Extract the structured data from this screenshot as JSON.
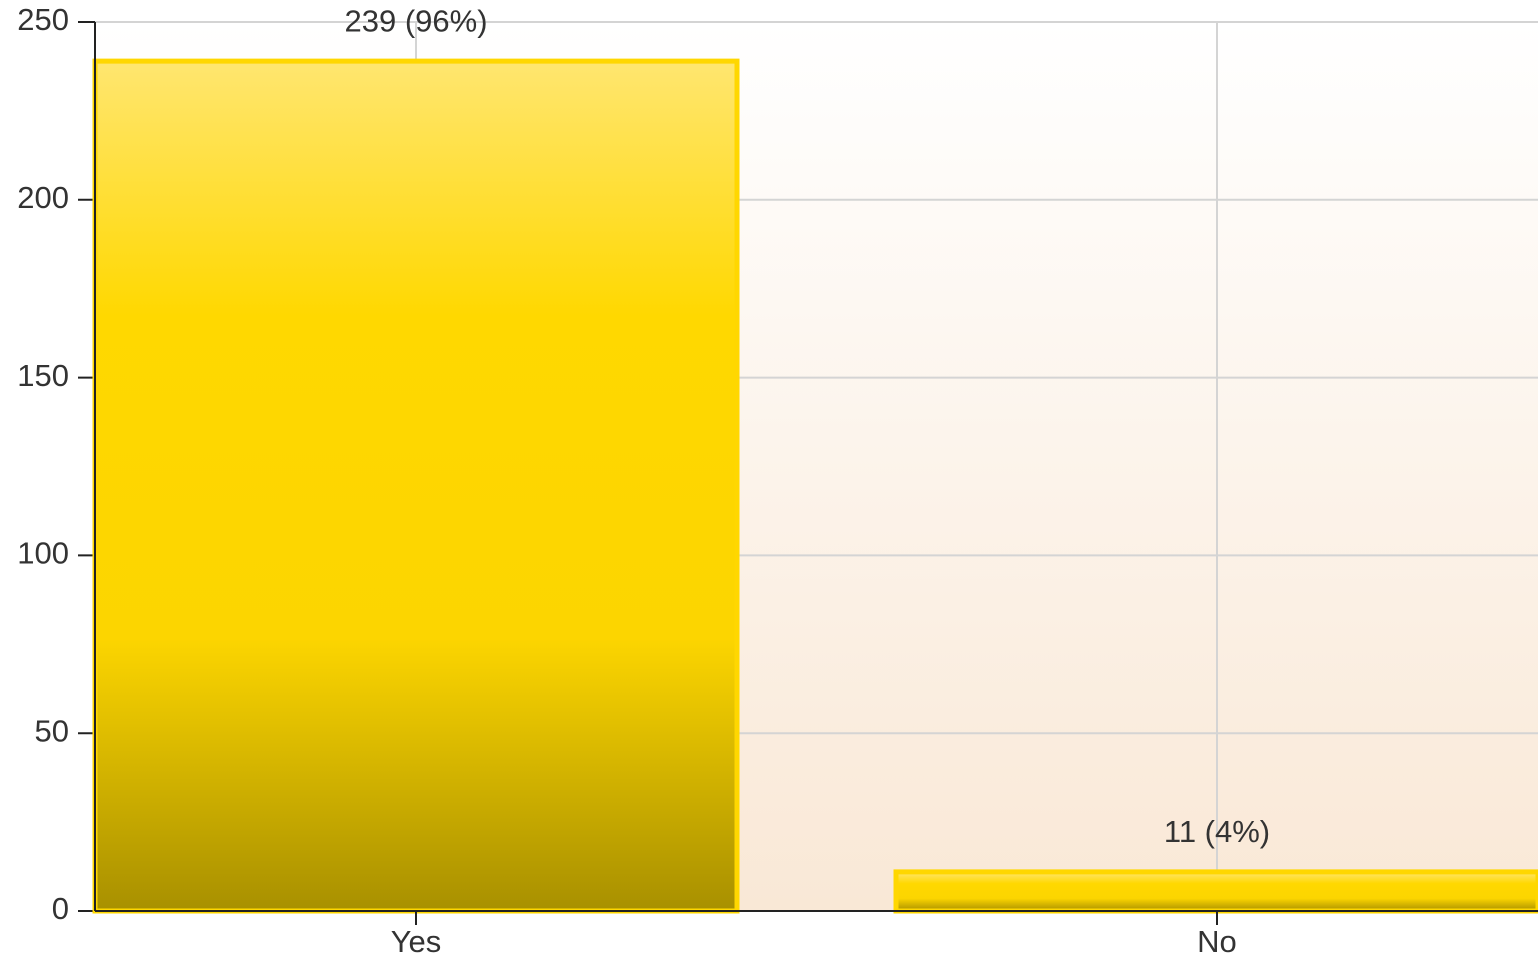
{
  "chart_data": {
    "type": "bar",
    "categories": [
      "Yes",
      "No"
    ],
    "values": [
      239,
      11
    ],
    "value_labels": [
      "239 (96%)",
      "11 (4%)"
    ],
    "color": "#ffd700",
    "ylim": [
      0,
      250
    ],
    "yticks": [
      0,
      50,
      100,
      150,
      200,
      250
    ],
    "grid": true
  }
}
